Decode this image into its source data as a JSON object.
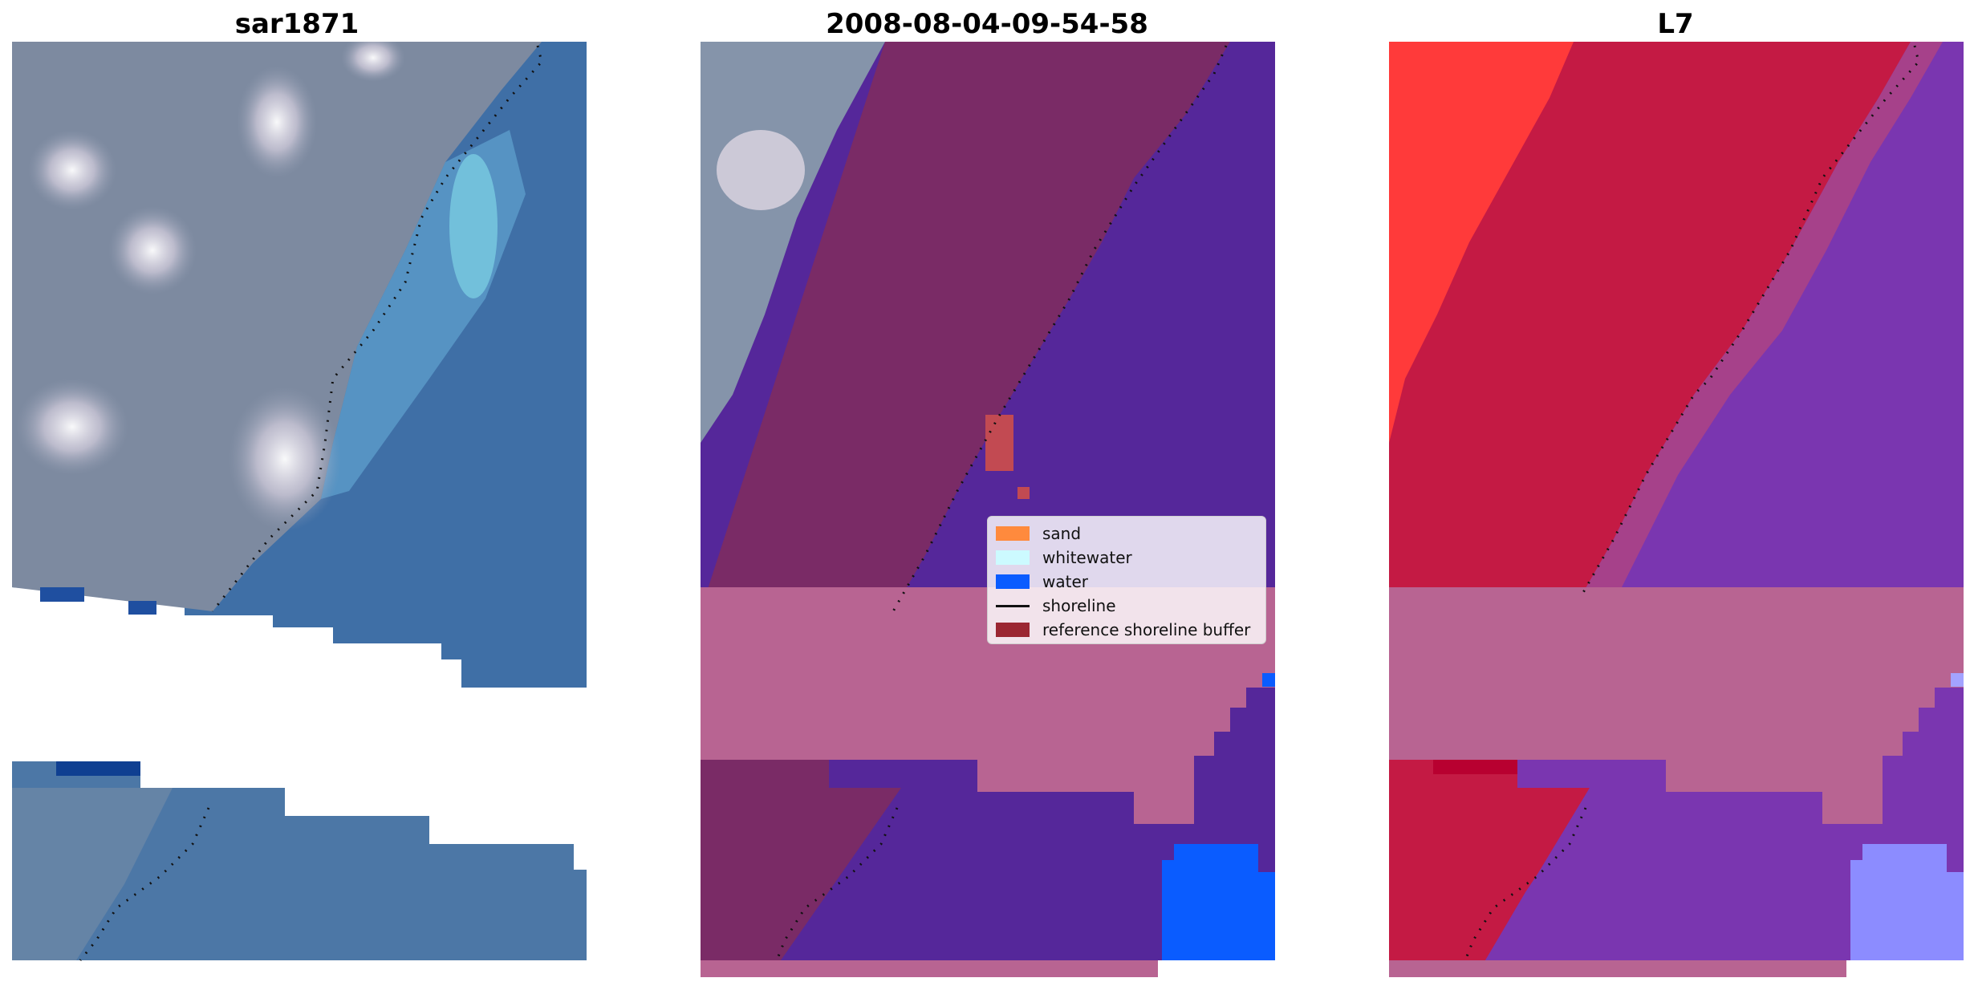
{
  "panels": [
    {
      "title": "sar1871"
    },
    {
      "title": "2008-08-04-09-54-58"
    },
    {
      "title": "L7"
    }
  ],
  "legend": {
    "items": [
      {
        "label": "sand",
        "color": "#ff8a3d",
        "kind": "patch"
      },
      {
        "label": "whitewater",
        "color": "#ccfaff",
        "kind": "patch"
      },
      {
        "label": "water",
        "color": "#0a5cff",
        "kind": "patch"
      },
      {
        "label": "shoreline",
        "color": "#111111",
        "kind": "line"
      },
      {
        "label": "reference shoreline buffer",
        "color": "#9b2632",
        "kind": "patch"
      }
    ]
  },
  "colors": {
    "sea_blue": "#3f6fa6",
    "land_grey": "#7d8aa0",
    "land_mauve": "#7a2b66",
    "water_purple": "#55279a",
    "nodata_pink": "#b86492",
    "index_red": "#c41a44",
    "index_bright_red": "#ff3a3a",
    "index_violet": "#7a36b0",
    "index_light_blue": "#8c8cff"
  }
}
